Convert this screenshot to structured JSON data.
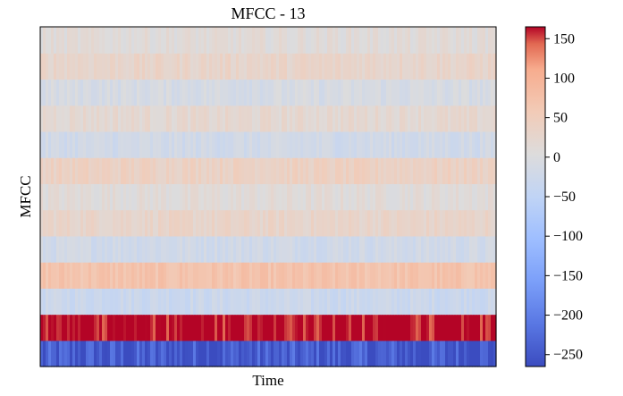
{
  "chart_data": {
    "type": "heatmap",
    "title": "MFCC - 13",
    "xlabel": "Time",
    "ylabel": "MFCC",
    "n_coefficients": 13,
    "row_values": [
      -250,
      170,
      -30,
      70,
      -20,
      30,
      10,
      40,
      -20,
      20,
      -10,
      30,
      10
    ],
    "colorbar": {
      "vmin": -265,
      "vmax": 165,
      "ticks": [
        150,
        100,
        50,
        0,
        -50,
        -100,
        -150,
        -200,
        -250
      ],
      "tick_labels": [
        "150",
        "100",
        "50",
        "0",
        "−50",
        "−100",
        "−150",
        "−200",
        "−250"
      ],
      "colormap": "coolwarm"
    }
  }
}
